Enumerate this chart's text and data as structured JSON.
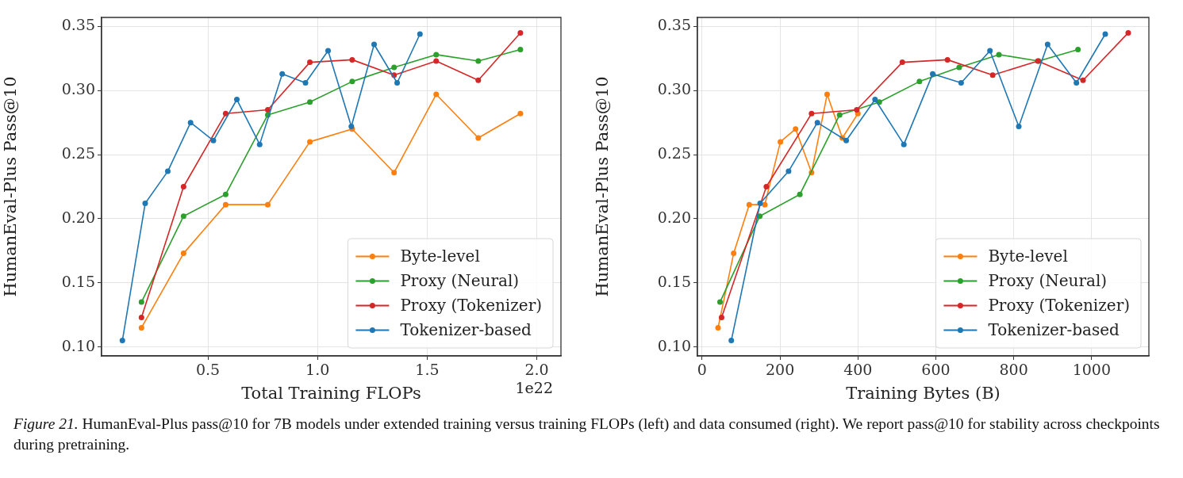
{
  "chart_data": [
    {
      "type": "line",
      "xlabel": "Total Training FLOPs",
      "ylabel": "HumanEval-Plus Pass@10",
      "xlim": [
        0.015,
        2.11
      ],
      "ylim": [
        0.093,
        0.357
      ],
      "xticks": [
        {
          "value": 0.5,
          "label": "0.5"
        },
        {
          "value": 1.0,
          "label": "1.0"
        },
        {
          "value": 1.5,
          "label": "1.5"
        },
        {
          "value": 2.0,
          "label": "2.0"
        }
      ],
      "yticks": [
        {
          "value": 0.1,
          "label": "0.10"
        },
        {
          "value": 0.15,
          "label": "0.15"
        },
        {
          "value": 0.2,
          "label": "0.20"
        },
        {
          "value": 0.25,
          "label": "0.25"
        },
        {
          "value": 0.3,
          "label": "0.30"
        },
        {
          "value": 0.35,
          "label": "0.35"
        }
      ],
      "grid": true,
      "legend": "bottom right",
      "marker": "circle",
      "line_style": "solid",
      "annotations": [
        "1e22"
      ],
      "series": [
        {
          "name": "Byte-level",
          "color": "#ff7f0e",
          "x": [
            0.197,
            0.389,
            0.581,
            0.773,
            0.965,
            1.158,
            1.349,
            1.541,
            1.733,
            1.925
          ],
          "values": [
            0.115,
            0.173,
            0.211,
            0.211,
            0.26,
            0.27,
            0.236,
            0.297,
            0.263,
            0.282
          ]
        },
        {
          "name": "Proxy (Neural)",
          "color": "#2ca02c",
          "x": [
            0.197,
            0.389,
            0.581,
            0.773,
            0.965,
            1.158,
            1.349,
            1.541,
            1.733,
            1.925
          ],
          "values": [
            0.135,
            0.202,
            0.219,
            0.281,
            0.291,
            0.307,
            0.318,
            0.328,
            0.323,
            0.332
          ]
        },
        {
          "name": "Proxy (Tokenizer)",
          "color": "#d62728",
          "x": [
            0.197,
            0.389,
            0.581,
            0.773,
            0.965,
            1.158,
            1.349,
            1.541,
            1.733,
            1.925
          ],
          "values": [
            0.123,
            0.225,
            0.282,
            0.285,
            0.322,
            0.324,
            0.312,
            0.323,
            0.308,
            0.345
          ]
        },
        {
          "name": "Tokenizer-based",
          "color": "#1f77b4",
          "x": [
            0.11,
            0.214,
            0.317,
            0.421,
            0.525,
            0.632,
            0.736,
            0.839,
            0.945,
            1.048,
            1.154,
            1.258,
            1.363,
            1.467
          ],
          "values": [
            0.105,
            0.212,
            0.237,
            0.275,
            0.261,
            0.293,
            0.258,
            0.313,
            0.306,
            0.331,
            0.272,
            0.336,
            0.306,
            0.344
          ]
        }
      ]
    },
    {
      "type": "line",
      "xlabel": "Training Bytes (B)",
      "ylabel": "HumanEval-Plus Pass@10",
      "xlim": [
        -12,
        1147
      ],
      "ylim": [
        0.093,
        0.357
      ],
      "xticks": [
        0,
        200,
        400,
        600,
        800,
        1000
      ],
      "yticks": [
        {
          "value": 0.1,
          "label": "0.10"
        },
        {
          "value": 0.15,
          "label": "0.15"
        },
        {
          "value": 0.2,
          "label": "0.20"
        },
        {
          "value": 0.25,
          "label": "0.25"
        },
        {
          "value": 0.3,
          "label": "0.30"
        },
        {
          "value": 0.35,
          "label": "0.35"
        }
      ],
      "grid": true,
      "legend": "bottom right",
      "marker": "circle",
      "line_style": "solid",
      "annotations": [
        "Figure 21.",
        "HumanEval-Plus pass@10 for 7B models under extended training versus training FLOPs (left) and data consumed (right). We report pass@10 for stability across checkpoints during pretraining."
      ],
      "series": [
        {
          "name": "Byte-level",
          "color": "#ff7f0e",
          "x": [
            41,
            81,
            121,
            161,
            201,
            240,
            281,
            321,
            360,
            400
          ],
          "values": [
            0.115,
            0.173,
            0.211,
            0.211,
            0.26,
            0.27,
            0.236,
            0.297,
            0.263,
            0.282
          ]
        },
        {
          "name": "Proxy (Neural)",
          "color": "#2ca02c",
          "x": [
            46,
            148,
            251,
            353,
            455,
            558,
            660,
            762,
            864,
            965
          ],
          "values": [
            0.135,
            0.202,
            0.219,
            0.281,
            0.291,
            0.307,
            0.318,
            0.328,
            0.323,
            0.332
          ]
        },
        {
          "name": "Proxy (Tokenizer)",
          "color": "#d62728",
          "x": [
            50,
            165,
            281,
            397,
            514,
            630,
            746,
            862,
            978,
            1094
          ],
          "values": [
            0.123,
            0.225,
            0.282,
            0.285,
            0.322,
            0.324,
            0.312,
            0.323,
            0.308,
            0.345
          ]
        },
        {
          "name": "Tokenizer-based",
          "color": "#1f77b4",
          "x": [
            75,
            149,
            222,
            296,
            370,
            444,
            518,
            592,
            665,
            739,
            813,
            887,
            961,
            1035
          ],
          "values": [
            0.105,
            0.212,
            0.237,
            0.275,
            0.261,
            0.293,
            0.258,
            0.313,
            0.306,
            0.331,
            0.272,
            0.336,
            0.306,
            0.344
          ]
        }
      ]
    }
  ]
}
